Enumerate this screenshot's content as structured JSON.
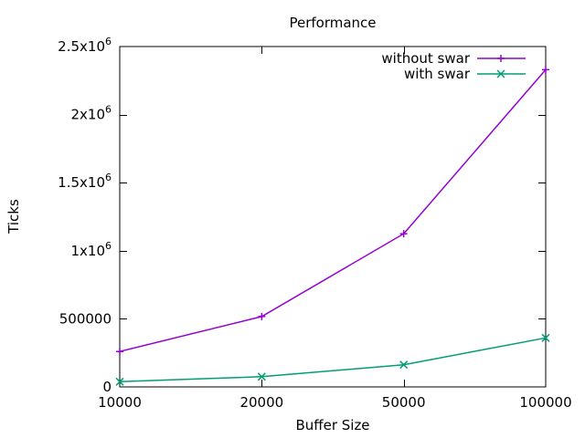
{
  "chart_data": {
    "type": "line",
    "title": "Performance",
    "xlabel": "Buffer Size",
    "ylabel": "Ticks",
    "x_scale": "categorical",
    "categories": [
      "10000",
      "20000",
      "50000",
      "100000"
    ],
    "ylim": [
      0,
      2500000
    ],
    "y_ticks": [
      {
        "value": 0,
        "base": "0",
        "exp": ""
      },
      {
        "value": 500000,
        "base": "500000",
        "exp": ""
      },
      {
        "value": 1000000,
        "base": "1x10",
        "exp": "6"
      },
      {
        "value": 1500000,
        "base": "1.5x10",
        "exp": "6"
      },
      {
        "value": 2000000,
        "base": "2x10",
        "exp": "6"
      },
      {
        "value": 2500000,
        "base": "2.5x10",
        "exp": "6"
      }
    ],
    "grid": false,
    "legend_position": "top-right",
    "series": [
      {
        "name": "without swar",
        "marker": "plus",
        "color": "#9400d3",
        "values": [
          260000,
          517000,
          1125000,
          2330000
        ]
      },
      {
        "name": "with swar",
        "marker": "cross",
        "color": "#009e73",
        "values": [
          38000,
          75000,
          163000,
          360000
        ]
      }
    ]
  }
}
